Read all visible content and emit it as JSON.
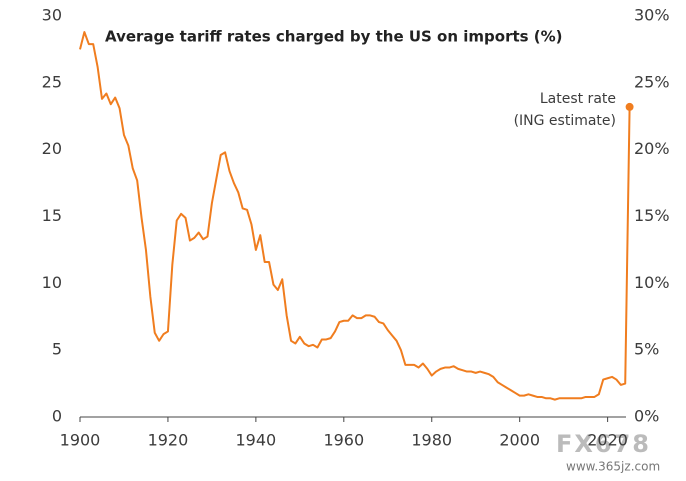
{
  "chart_data": {
    "type": "line",
    "title": "Average tariff rates charged by the US on imports (%)",
    "x": [
      1900,
      1901,
      1902,
      1903,
      1904,
      1905,
      1906,
      1907,
      1908,
      1909,
      1910,
      1911,
      1912,
      1913,
      1914,
      1915,
      1916,
      1917,
      1918,
      1919,
      1920,
      1921,
      1922,
      1923,
      1924,
      1925,
      1926,
      1927,
      1928,
      1929,
      1930,
      1931,
      1932,
      1933,
      1934,
      1935,
      1936,
      1937,
      1938,
      1939,
      1940,
      1941,
      1942,
      1943,
      1944,
      1945,
      1946,
      1947,
      1948,
      1949,
      1950,
      1951,
      1952,
      1953,
      1954,
      1955,
      1956,
      1957,
      1958,
      1959,
      1960,
      1961,
      1962,
      1963,
      1964,
      1965,
      1966,
      1967,
      1968,
      1969,
      1970,
      1971,
      1972,
      1973,
      1974,
      1975,
      1976,
      1977,
      1978,
      1979,
      1980,
      1981,
      1982,
      1983,
      1984,
      1985,
      1986,
      1987,
      1988,
      1989,
      1990,
      1991,
      1992,
      1993,
      1994,
      1995,
      1996,
      1997,
      1998,
      1999,
      2000,
      2001,
      2002,
      2003,
      2004,
      2005,
      2006,
      2007,
      2008,
      2009,
      2010,
      2011,
      2012,
      2013,
      2014,
      2015,
      2016,
      2017,
      2018,
      2019,
      2020,
      2021,
      2022,
      2023,
      2024,
      2025
    ],
    "values": [
      27.5,
      28.8,
      27.9,
      27.9,
      26.2,
      23.8,
      24.2,
      23.4,
      23.9,
      23.1,
      21.1,
      20.3,
      18.6,
      17.7,
      14.9,
      12.5,
      9.0,
      6.3,
      5.7,
      6.2,
      6.4,
      11.4,
      14.7,
      15.2,
      14.9,
      13.2,
      13.4,
      13.8,
      13.3,
      13.5,
      16.0,
      17.8,
      19.6,
      19.8,
      18.4,
      17.5,
      16.8,
      15.6,
      15.5,
      14.4,
      12.5,
      13.6,
      11.6,
      11.6,
      9.9,
      9.5,
      10.3,
      7.6,
      5.7,
      5.5,
      6.0,
      5.5,
      5.3,
      5.4,
      5.2,
      5.8,
      5.8,
      5.9,
      6.4,
      7.1,
      7.2,
      7.2,
      7.6,
      7.4,
      7.4,
      7.6,
      7.6,
      7.5,
      7.1,
      7.0,
      6.5,
      6.1,
      5.7,
      5.0,
      3.9,
      3.9,
      3.9,
      3.7,
      4.0,
      3.6,
      3.1,
      3.4,
      3.6,
      3.7,
      3.7,
      3.8,
      3.6,
      3.5,
      3.4,
      3.4,
      3.3,
      3.4,
      3.3,
      3.2,
      3.0,
      2.6,
      2.4,
      2.2,
      2.0,
      1.8,
      1.6,
      1.6,
      1.7,
      1.6,
      1.5,
      1.5,
      1.4,
      1.4,
      1.3,
      1.4,
      1.4,
      1.4,
      1.4,
      1.4,
      1.4,
      1.5,
      1.5,
      1.5,
      1.7,
      2.8,
      2.9,
      3.0,
      2.8,
      2.4,
      2.5,
      23.2
    ],
    "color": "#f07d1f",
    "xlim": [
      1900,
      2026
    ],
    "xticks": [
      1900,
      1920,
      1940,
      1960,
      1980,
      2000,
      2020
    ],
    "ylim": [
      0,
      30
    ],
    "yticks": [
      0,
      5,
      10,
      15,
      20,
      25,
      30
    ],
    "y2lim": [
      0,
      30
    ],
    "y2ticks": [
      {
        "value": 0,
        "label": "0%"
      },
      {
        "value": 5,
        "label": "5%"
      },
      {
        "value": 10,
        "label": "10%"
      },
      {
        "value": 15,
        "label": "15%"
      },
      {
        "value": 20,
        "label": "20%"
      },
      {
        "value": 25,
        "label": "25%"
      },
      {
        "value": 30,
        "label": "30%"
      }
    ],
    "annotations": [
      "Latest rate",
      "(ING estimate)"
    ]
  },
  "watermark": {
    "logo": "FX678",
    "url": "www.365jz.com"
  }
}
